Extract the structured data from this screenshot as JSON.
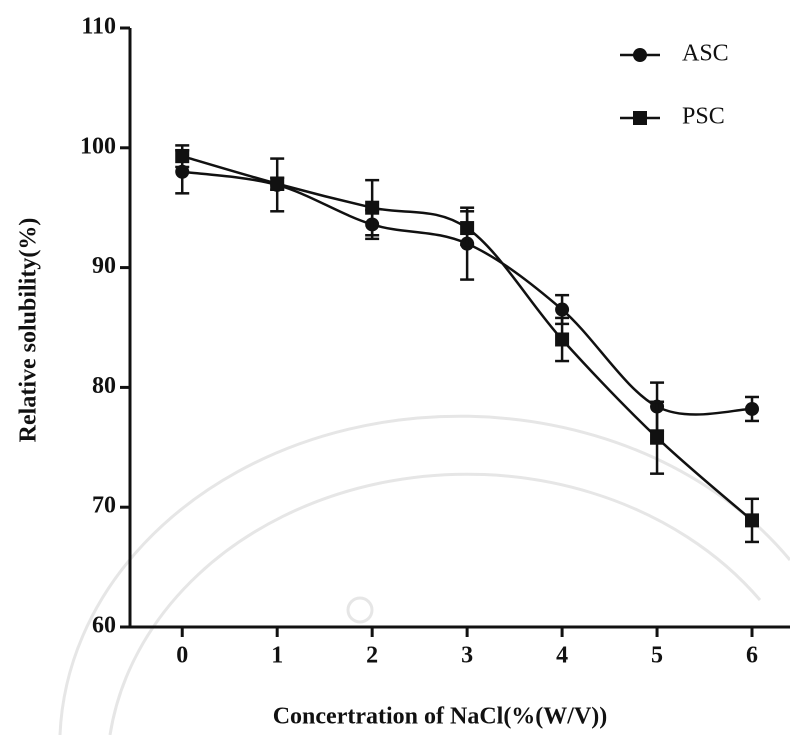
{
  "chart_data": {
    "type": "line",
    "xlabel": "Concertration of NaCl(%(W/V))",
    "ylabel": "Relative solubility(%)",
    "x": [
      0,
      1,
      2,
      3,
      4,
      5,
      6
    ],
    "xlim": [
      -0.55,
      6.4
    ],
    "xticks": [
      0,
      1,
      2,
      3,
      4,
      5,
      6
    ],
    "ylim": [
      60,
      110
    ],
    "yticks": [
      60,
      70,
      80,
      90,
      100,
      110
    ],
    "legend": "upper right",
    "series": [
      {
        "name": "ASC",
        "color": "#111111",
        "marker": "circle",
        "values": [
          98.0,
          96.9,
          93.6,
          92.0,
          86.5,
          78.4,
          78.2
        ],
        "errors": [
          1.8,
          2.2,
          1.2,
          3.0,
          1.2,
          2.0,
          1.0
        ]
      },
      {
        "name": "PSC",
        "color": "#111111",
        "marker": "square",
        "values": [
          99.3,
          97.0,
          95.0,
          93.3,
          84.0,
          75.8,
          68.9
        ],
        "errors": [
          0.9,
          0.5,
          2.3,
          1.4,
          1.8,
          3.0,
          1.8
        ]
      }
    ]
  }
}
